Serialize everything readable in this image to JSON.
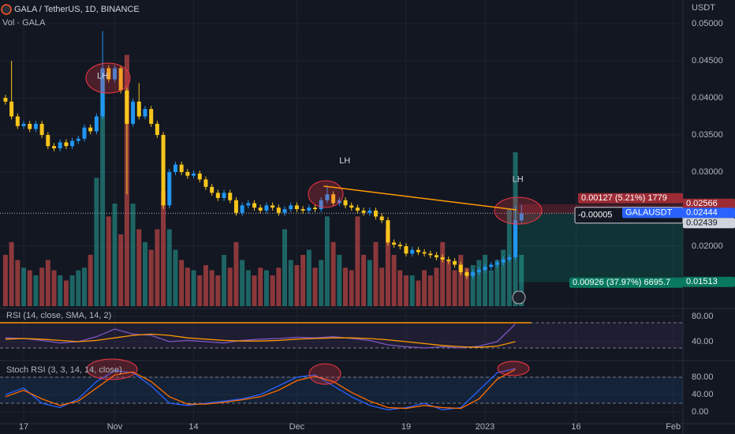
{
  "chart_data": [
    {
      "type": "candlestick",
      "title": "GALA / TetherUS, 1D, BINANCE",
      "subtitle": "Vol · GALA",
      "y_axis_label": "USDT",
      "x": [
        -3,
        -2,
        -1,
        0,
        1,
        2,
        3,
        4,
        5,
        6,
        7,
        8,
        9,
        10,
        11,
        12,
        13,
        14,
        15,
        16,
        17,
        18,
        19,
        20,
        21,
        22,
        23,
        24,
        25,
        26,
        27,
        28,
        29,
        30,
        31,
        32,
        33,
        34,
        35,
        36,
        37,
        38,
        39,
        40,
        41,
        42,
        43,
        44,
        45,
        46,
        47,
        48,
        49,
        50,
        51,
        52,
        53,
        54,
        55,
        56,
        57,
        58,
        59,
        60,
        61,
        62,
        63,
        64,
        65,
        66,
        67,
        68,
        69,
        70,
        71,
        72,
        73,
        74,
        75,
        76,
        77,
        78,
        79,
        80,
        81,
        82
      ],
      "open": [
        0.04,
        0.0395,
        0.0375,
        0.0362,
        0.0365,
        0.0358,
        0.0365,
        0.035,
        0.0335,
        0.0332,
        0.034,
        0.0335,
        0.0342,
        0.0345,
        0.036,
        0.0355,
        0.0375,
        0.044,
        0.0425,
        0.044,
        0.041,
        0.0365,
        0.0395,
        0.0375,
        0.0385,
        0.0365,
        0.035,
        0.0255,
        0.03,
        0.031,
        0.03,
        0.0295,
        0.0298,
        0.029,
        0.028,
        0.0272,
        0.0265,
        0.0272,
        0.0262,
        0.0245,
        0.0255,
        0.0258,
        0.0252,
        0.0248,
        0.0255,
        0.0252,
        0.0245,
        0.025,
        0.0255,
        0.025,
        0.0248,
        0.0252,
        0.025,
        0.0262,
        0.027,
        0.0258,
        0.0262,
        0.0255,
        0.0252,
        0.0248,
        0.0245,
        0.0248,
        0.024,
        0.0235,
        0.0205,
        0.0202,
        0.02,
        0.019,
        0.0195,
        0.0192,
        0.019,
        0.0188,
        0.0185,
        0.0182,
        0.018,
        0.0175,
        0.0165,
        0.016,
        0.0165,
        0.0168,
        0.0172,
        0.0175,
        0.0178,
        0.0182,
        0.0185,
        0.0235
      ],
      "high": [
        0.0404,
        0.045,
        0.0379,
        0.0369,
        0.0369,
        0.0369,
        0.0369,
        0.0354,
        0.0339,
        0.0344,
        0.0344,
        0.0346,
        0.0349,
        0.0364,
        0.0364,
        0.0379,
        0.049,
        0.0444,
        0.0444,
        0.0444,
        0.0414,
        0.0399,
        0.042,
        0.0389,
        0.0389,
        0.0369,
        0.0354,
        0.0304,
        0.0314,
        0.0314,
        0.0304,
        0.0302,
        0.0302,
        0.0294,
        0.0284,
        0.0276,
        0.0276,
        0.0276,
        0.0266,
        0.0259,
        0.0262,
        0.0262,
        0.0256,
        0.0259,
        0.0259,
        0.0256,
        0.0254,
        0.0259,
        0.0259,
        0.0254,
        0.0256,
        0.0256,
        0.0266,
        0.0282,
        0.0274,
        0.0266,
        0.0266,
        0.0259,
        0.0256,
        0.0252,
        0.0252,
        0.0252,
        0.0244,
        0.0239,
        0.0209,
        0.0206,
        0.0204,
        0.0199,
        0.0199,
        0.0196,
        0.0194,
        0.0192,
        0.0189,
        0.0186,
        0.0184,
        0.0179,
        0.0169,
        0.0169,
        0.0172,
        0.0176,
        0.0179,
        0.0182,
        0.0186,
        0.0189,
        0.0255,
        0.0256
      ],
      "low": [
        0.0391,
        0.0371,
        0.0358,
        0.0358,
        0.0354,
        0.0354,
        0.0346,
        0.0331,
        0.0328,
        0.0328,
        0.0331,
        0.0331,
        0.0338,
        0.0341,
        0.0351,
        0.0351,
        0.0371,
        0.0421,
        0.0421,
        0.0406,
        0.027,
        0.0361,
        0.0371,
        0.0371,
        0.0361,
        0.0346,
        0.025,
        0.0251,
        0.0296,
        0.0296,
        0.0291,
        0.0291,
        0.0286,
        0.0276,
        0.0268,
        0.0261,
        0.0261,
        0.0258,
        0.0241,
        0.0241,
        0.0251,
        0.0248,
        0.0244,
        0.0244,
        0.0248,
        0.0241,
        0.0241,
        0.0246,
        0.0246,
        0.0244,
        0.0244,
        0.0246,
        0.0246,
        0.0258,
        0.0254,
        0.0254,
        0.0251,
        0.0248,
        0.0244,
        0.0241,
        0.0241,
        0.0236,
        0.0231,
        0.0201,
        0.0198,
        0.0196,
        0.0186,
        0.0186,
        0.0188,
        0.0186,
        0.0184,
        0.0181,
        0.0178,
        0.0176,
        0.0171,
        0.0161,
        0.0156,
        0.0156,
        0.0161,
        0.0164,
        0.0168,
        0.0171,
        0.0174,
        0.0178,
        0.0181,
        0.0231
      ],
      "close": [
        0.0395,
        0.0375,
        0.0362,
        0.0365,
        0.0358,
        0.0365,
        0.035,
        0.0335,
        0.0332,
        0.034,
        0.0335,
        0.0342,
        0.0345,
        0.036,
        0.0355,
        0.0375,
        0.044,
        0.0425,
        0.044,
        0.041,
        0.0365,
        0.0395,
        0.0375,
        0.0385,
        0.0365,
        0.035,
        0.0255,
        0.03,
        0.031,
        0.03,
        0.0295,
        0.0298,
        0.029,
        0.028,
        0.0272,
        0.0265,
        0.0272,
        0.0262,
        0.0245,
        0.0255,
        0.0258,
        0.0252,
        0.0248,
        0.0255,
        0.0252,
        0.0245,
        0.025,
        0.0255,
        0.025,
        0.0248,
        0.0252,
        0.025,
        0.0262,
        0.027,
        0.0258,
        0.0262,
        0.0255,
        0.0252,
        0.0248,
        0.0245,
        0.0248,
        0.024,
        0.0235,
        0.0205,
        0.0202,
        0.02,
        0.019,
        0.0195,
        0.0192,
        0.019,
        0.0188,
        0.0185,
        0.0182,
        0.018,
        0.0175,
        0.0165,
        0.016,
        0.0165,
        0.0168,
        0.0172,
        0.0175,
        0.0178,
        0.0182,
        0.0185,
        0.0235,
        0.0244
      ],
      "volume": [
        20,
        25,
        18,
        15,
        14,
        12,
        15,
        18,
        14,
        12,
        10,
        12,
        14,
        15,
        20,
        50,
        92,
        35,
        40,
        28,
        98,
        40,
        30,
        25,
        22,
        30,
        45,
        30,
        22,
        18,
        15,
        14,
        12,
        16,
        14,
        12,
        20,
        15,
        25,
        18,
        14,
        12,
        15,
        14,
        12,
        15,
        30,
        18,
        16,
        20,
        22,
        15,
        18,
        35,
        25,
        20,
        15,
        14,
        35,
        20,
        18,
        25,
        15,
        30,
        20,
        14,
        12,
        12,
        10,
        14,
        12,
        15,
        25,
        18,
        14,
        20,
        15,
        16,
        18,
        20,
        14,
        18,
        22,
        38,
        60,
        20
      ],
      "vlim": [
        0,
        120
      ],
      "up_color": "#2196f3",
      "down_color": "#f7c51b",
      "volume_up_color": "rgba(38,166,154,0.55)",
      "volume_down_color": "rgba(239,83,80,0.55)",
      "ylim": [
        0.0117,
        0.0532
      ],
      "yticks": [
        {
          "value": 0.05,
          "label": "0.05000"
        },
        {
          "value": 0.045,
          "label": "0.04500"
        },
        {
          "value": 0.04,
          "label": "0.04000"
        },
        {
          "value": 0.035,
          "label": "0.03500"
        },
        {
          "value": 0.03,
          "label": "0.03000"
        },
        {
          "value": 0.02,
          "label": "0.02000"
        }
      ],
      "xlim": [
        -3.9,
        108.6
      ],
      "xticks": [
        {
          "value": 0,
          "label": "17"
        },
        {
          "value": 15,
          "label": "Nov"
        },
        {
          "value": 28,
          "label": "14"
        },
        {
          "value": 45,
          "label": "Dec"
        },
        {
          "value": 63,
          "label": "19"
        },
        {
          "value": 76,
          "label": "2023"
        },
        {
          "value": 91,
          "label": "16"
        },
        {
          "value": 107,
          "label": "Feb"
        }
      ],
      "grid": true,
      "annotations": [
        {
          "text": "LH",
          "x": 13,
          "y": 0.0429
        },
        {
          "text": "LH",
          "x": 52.9,
          "y": 0.0315
        },
        {
          "text": "LH",
          "x": 81.4,
          "y": 0.029
        }
      ],
      "trend_line": {
        "x": [
          49.4,
          81.2
        ],
        "y": [
          0.0281,
          0.0249
        ],
        "color": "#ff9800"
      },
      "last_price": {
        "symbol": "GALAUSDT",
        "value": 0.02444,
        "label": "0.02444"
      },
      "position": {
        "x_start": 81.5,
        "stop": {
          "value": 0.02566,
          "label": "0.02566"
        },
        "entry": {
          "value": 0.02439,
          "label": "0.02439"
        },
        "target": {
          "value": 0.01513,
          "label": "0.01513"
        },
        "stop_text": "0.00127 (5.21%) 1779",
        "mid_text": "-0.00005",
        "target_text": "0.00926 (37.97%) 6695.7"
      }
    },
    {
      "type": "line",
      "title": "RSI (14, close, SMA, 14, 2)",
      "x": [
        -3,
        0,
        3,
        6,
        9,
        12,
        15,
        18,
        21,
        24,
        27,
        30,
        33,
        36,
        39,
        42,
        45,
        48,
        51,
        54,
        57,
        60,
        63,
        66,
        69,
        72,
        75,
        78,
        81
      ],
      "series": [
        {
          "color": "#7e57c2",
          "values": [
            46,
            45,
            42,
            38,
            40,
            48,
            60,
            52,
            50,
            40,
            42,
            40,
            38,
            42,
            44,
            45,
            47,
            46,
            48,
            45,
            42,
            35,
            32,
            30,
            32,
            30,
            33,
            40,
            68
          ]
        },
        {
          "color": "#ff9800",
          "values": [
            44,
            45,
            44,
            42,
            40,
            42,
            46,
            50,
            52,
            50,
            46,
            44,
            42,
            41,
            41,
            42,
            44,
            45,
            46,
            46,
            45,
            43,
            40,
            37,
            34,
            32,
            31,
            33,
            40
          ]
        }
      ],
      "ylim": [
        12.5,
        90
      ],
      "yticks": [
        {
          "value": 80,
          "label": "80.00"
        },
        {
          "value": 40,
          "label": "40.00"
        }
      ],
      "bands": [
        70,
        30
      ],
      "band_color": "rgba(126,87,194,0.10)",
      "hline": {
        "value": 70,
        "color": "#ff9800"
      }
    },
    {
      "type": "line",
      "title": "Stoch RSI (3, 3, 14, 14, close)",
      "x": [
        -3,
        0,
        3,
        6,
        9,
        12,
        15,
        18,
        21,
        24,
        27,
        30,
        33,
        36,
        39,
        42,
        45,
        48,
        51,
        54,
        57,
        60,
        63,
        66,
        69,
        72,
        75,
        78,
        81
      ],
      "series": [
        {
          "color": "#2962ff",
          "values": [
            40,
            55,
            20,
            10,
            30,
            70,
            95,
            90,
            60,
            20,
            15,
            20,
            25,
            30,
            40,
            60,
            80,
            85,
            60,
            35,
            15,
            5,
            10,
            20,
            5,
            10,
            50,
            90,
            100
          ]
        },
        {
          "color": "#ff6d00",
          "values": [
            35,
            50,
            30,
            15,
            25,
            55,
            85,
            92,
            70,
            35,
            18,
            18,
            22,
            28,
            35,
            50,
            72,
            82,
            70,
            45,
            25,
            10,
            8,
            15,
            10,
            8,
            30,
            75,
            98
          ]
        }
      ],
      "ylim": [
        -23.6,
        112.7
      ],
      "yticks": [
        {
          "value": 80,
          "label": "80.00"
        },
        {
          "value": 40,
          "label": "40.00"
        },
        {
          "value": 0,
          "label": "0.00"
        }
      ],
      "bands": [
        80,
        20
      ],
      "band_color": "rgba(33,150,243,0.10)"
    }
  ]
}
